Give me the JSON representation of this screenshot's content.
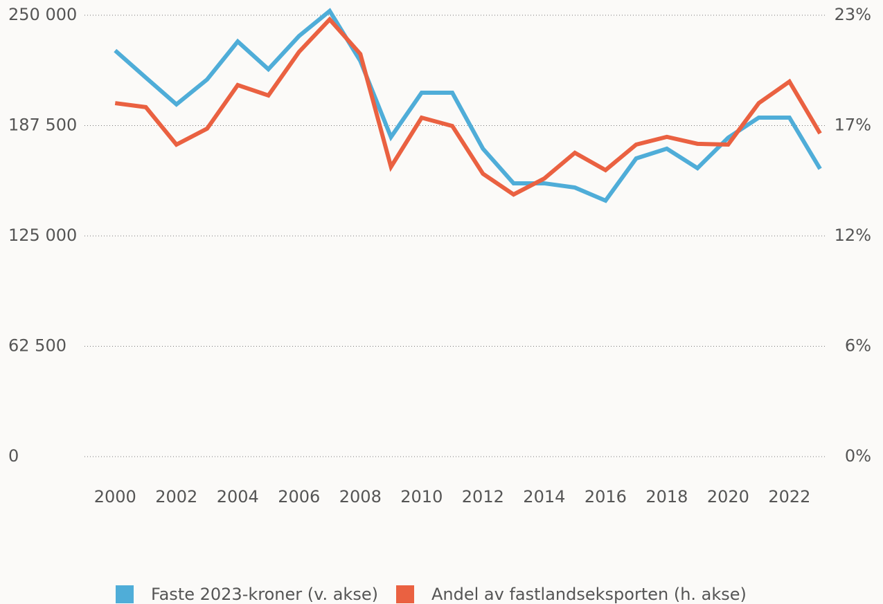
{
  "chart_data": {
    "type": "line",
    "x": [
      2000,
      2001,
      2002,
      2003,
      2004,
      2005,
      2006,
      2007,
      2008,
      2009,
      2010,
      2011,
      2012,
      2013,
      2014,
      2015,
      2016,
      2017,
      2018,
      2019,
      2020,
      2021,
      2022,
      2023
    ],
    "series": [
      {
        "name": "Faste 2023-kroner (v. akse)",
        "color": "#4fadd8",
        "values": [
          230000,
          214700,
          199500,
          213600,
          235100,
          219400,
          238200,
          252400,
          224100,
          181000,
          206100,
          206100,
          174400,
          154800,
          154800,
          152400,
          145000,
          168900,
          174400,
          163400,
          180600,
          192000,
          192000,
          163000
        ]
      },
      {
        "name": "Andel av fastlandseksporten (h. akse)",
        "color": "#ea6141",
        "axis": "y2",
        "values": [
          18.42,
          18.21,
          16.26,
          17.09,
          19.36,
          18.82,
          21.09,
          22.78,
          20.98,
          15.1,
          17.66,
          17.23,
          14.74,
          13.66,
          14.49,
          15.83,
          14.93,
          16.26,
          16.66,
          16.3,
          16.26,
          18.42,
          19.54,
          16.84
        ]
      }
    ],
    "xlim": [
      1999,
      2023.2
    ],
    "xticks": [
      2000,
      2002,
      2004,
      2006,
      2008,
      2010,
      2012,
      2014,
      2016,
      2018,
      2020,
      2022
    ],
    "ylim": [
      0,
      250000
    ],
    "yticks": [
      0,
      {
        "value": 62500,
        "label": "62 500"
      },
      {
        "value": 125000,
        "label": "125 000"
      },
      {
        "value": 187500,
        "label": "187 500"
      },
      {
        "value": 250000,
        "label": "250 000"
      }
    ],
    "y2lim": [
      0,
      23
    ],
    "y2ticks": [
      {
        "value": 0,
        "label": "0%"
      },
      {
        "value": 5.75,
        "label": "6%"
      },
      {
        "value": 11.5,
        "label": "12%"
      },
      {
        "value": 17.25,
        "label": "17%"
      },
      {
        "value": 23,
        "label": "23%"
      }
    ],
    "grid": true,
    "legend": "bottom"
  }
}
